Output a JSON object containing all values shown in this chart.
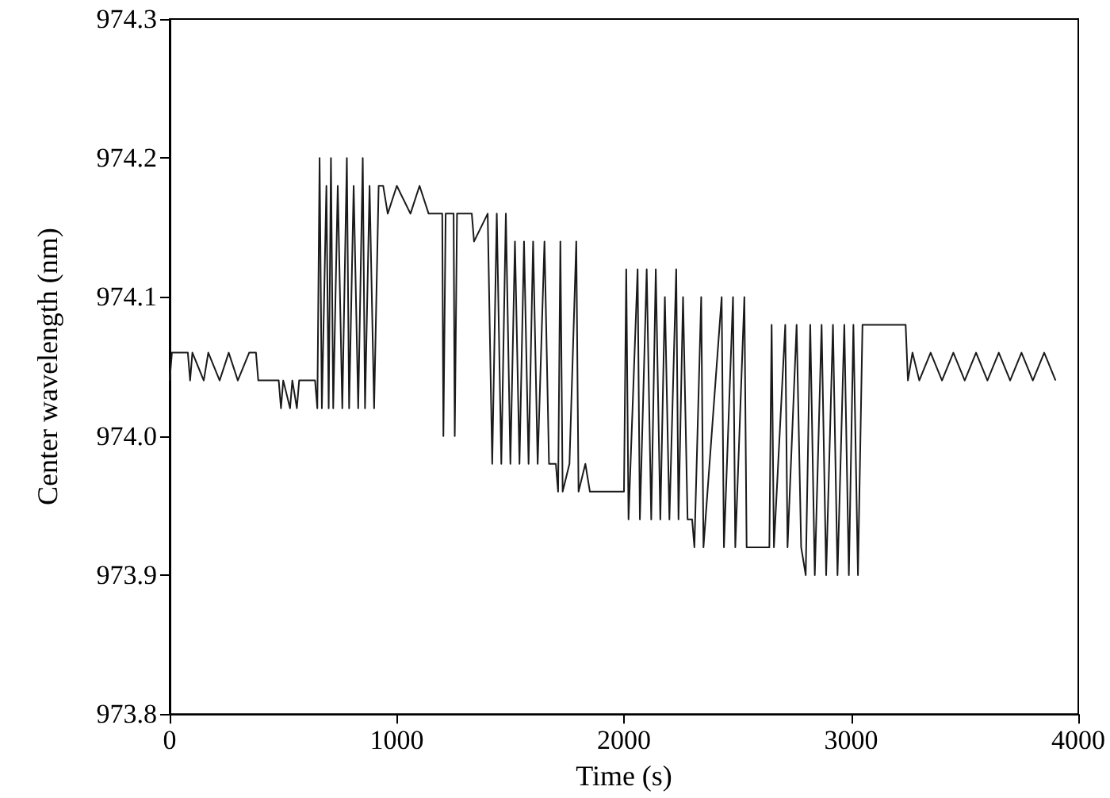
{
  "chart_data": {
    "type": "line",
    "xlabel": "Time (s)",
    "ylabel": "Center wavelength (nm)",
    "xlim": [
      0,
      4000
    ],
    "xticks": [
      0,
      1000,
      2000,
      3000,
      4000
    ],
    "ylim": [
      973.8,
      974.3
    ],
    "yticks": [
      {
        "value": 973.8,
        "label": "973.8"
      },
      {
        "value": 973.9,
        "label": "973.9"
      },
      {
        "value": 974.0,
        "label": "974.0"
      },
      {
        "value": 974.1,
        "label": "974.1"
      },
      {
        "value": 974.2,
        "label": "974.2"
      },
      {
        "value": 974.3,
        "label": "974.3"
      }
    ],
    "grid": false,
    "marker": "none",
    "line_style": "solid",
    "series": [
      {
        "color": "#1a1a1a",
        "x": [
          0,
          10,
          80,
          90,
          100,
          150,
          170,
          220,
          260,
          300,
          350,
          380,
          390,
          480,
          490,
          500,
          530,
          540,
          560,
          570,
          640,
          650,
          660,
          670,
          690,
          700,
          710,
          720,
          740,
          760,
          780,
          790,
          810,
          830,
          850,
          860,
          880,
          900,
          920,
          940,
          960,
          1000,
          1060,
          1100,
          1140,
          1200,
          1205,
          1215,
          1250,
          1255,
          1265,
          1330,
          1340,
          1400,
          1420,
          1440,
          1460,
          1480,
          1500,
          1520,
          1540,
          1560,
          1580,
          1600,
          1620,
          1650,
          1670,
          1700,
          1710,
          1720,
          1730,
          1760,
          1790,
          1800,
          1830,
          1850,
          2000,
          2010,
          2020,
          2060,
          2070,
          2100,
          2120,
          2140,
          2160,
          2180,
          2200,
          2230,
          2240,
          2260,
          2280,
          2300,
          2310,
          2340,
          2350,
          2430,
          2440,
          2480,
          2490,
          2530,
          2540,
          2640,
          2650,
          2660,
          2710,
          2720,
          2760,
          2780,
          2800,
          2820,
          2840,
          2870,
          2890,
          2920,
          2940,
          2970,
          2990,
          3010,
          3030,
          3050,
          3240,
          3250,
          3270,
          3300,
          3350,
          3400,
          3450,
          3500,
          3550,
          3600,
          3650,
          3700,
          3750,
          3800,
          3850,
          3900
        ],
        "values": [
          974.04,
          974.06,
          974.06,
          974.04,
          974.06,
          974.04,
          974.06,
          974.04,
          974.06,
          974.04,
          974.06,
          974.06,
          974.04,
          974.04,
          974.02,
          974.04,
          974.02,
          974.04,
          974.02,
          974.04,
          974.04,
          974.02,
          974.2,
          974.02,
          974.18,
          974.02,
          974.2,
          974.02,
          974.18,
          974.02,
          974.2,
          974.02,
          974.18,
          974.02,
          974.2,
          974.02,
          974.18,
          974.02,
          974.18,
          974.18,
          974.16,
          974.18,
          974.16,
          974.18,
          974.16,
          974.16,
          974.0,
          974.16,
          974.16,
          974.0,
          974.16,
          974.16,
          974.14,
          974.16,
          973.98,
          974.16,
          973.98,
          974.16,
          973.98,
          974.14,
          973.98,
          974.14,
          973.98,
          974.14,
          973.98,
          974.14,
          973.98,
          973.98,
          973.96,
          974.14,
          973.96,
          973.98,
          974.14,
          973.96,
          973.98,
          973.96,
          973.96,
          974.12,
          973.94,
          974.12,
          973.94,
          974.12,
          973.94,
          974.12,
          973.94,
          974.1,
          973.94,
          974.12,
          973.94,
          974.1,
          973.94,
          973.94,
          973.92,
          974.1,
          973.92,
          974.1,
          973.92,
          974.1,
          973.92,
          974.1,
          973.92,
          973.92,
          974.08,
          973.92,
          974.08,
          973.92,
          974.08,
          973.92,
          973.9,
          974.08,
          973.9,
          974.08,
          973.9,
          974.08,
          973.9,
          974.08,
          973.9,
          974.08,
          973.9,
          974.08,
          974.08,
          974.04,
          974.06,
          974.04,
          974.06,
          974.04,
          974.06,
          974.04,
          974.06,
          974.04,
          974.06,
          974.04,
          974.06,
          974.04,
          974.06,
          974.04
        ]
      }
    ]
  }
}
